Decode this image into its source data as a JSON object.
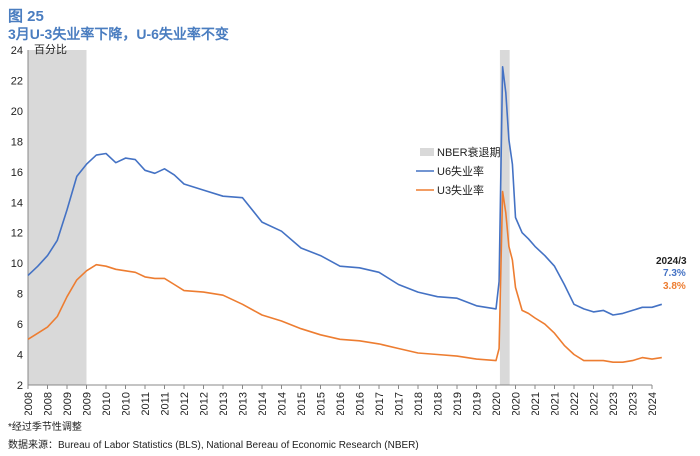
{
  "figure": {
    "number": "图 25",
    "title": "3月U-3失业率下降，U-6失业率不变",
    "footnote": "*经过季节性调整",
    "source": "数据来源：Bureau of Labor Statistics (BLS), National Bereau of Economic Research (NBER)"
  },
  "colors": {
    "u6": "#4472c4",
    "u3": "#ed7d31",
    "recession": "#d9d9d9",
    "axis": "#888888"
  },
  "chart_data": {
    "type": "line",
    "title": "3月U-3失业率下降，U-6失业率不变",
    "ylabel": "百分比",
    "xlim": [
      2008,
      2024
    ],
    "ylim": [
      2,
      24
    ],
    "yticks": [
      2,
      4,
      6,
      8,
      10,
      12,
      14,
      16,
      18,
      20,
      22,
      24
    ],
    "xticks": [
      "2008",
      "2008",
      "2009",
      "2009",
      "2010",
      "2010",
      "2011",
      "2011",
      "2012",
      "2012",
      "2013",
      "2013",
      "2014",
      "2014",
      "2015",
      "2015",
      "2016",
      "2016",
      "2017",
      "2017",
      "2018",
      "2018",
      "2019",
      "2019",
      "2020",
      "2020",
      "2021",
      "2021",
      "2022",
      "2022",
      "2023",
      "2023",
      "2024"
    ],
    "recessions": [
      {
        "name": "NBER衰退期",
        "start": 2008.0,
        "end": 2009.5
      },
      {
        "name": "NBER衰退期",
        "start": 2020.1,
        "end": 2020.35
      }
    ],
    "legend": [
      {
        "key": "recession",
        "label": "NBER衰退期"
      },
      {
        "key": "u6",
        "label": "U6失业率"
      },
      {
        "key": "u3",
        "label": "U3失业率"
      }
    ],
    "series": [
      {
        "name": "U6失业率",
        "x": [
          2008.0,
          2008.25,
          2008.5,
          2008.75,
          2009.0,
          2009.25,
          2009.5,
          2009.75,
          2010.0,
          2010.25,
          2010.5,
          2010.75,
          2011.0,
          2011.25,
          2011.5,
          2011.75,
          2012.0,
          2012.5,
          2013.0,
          2013.5,
          2014.0,
          2014.5,
          2015.0,
          2015.5,
          2016.0,
          2016.5,
          2017.0,
          2017.5,
          2018.0,
          2018.5,
          2019.0,
          2019.5,
          2020.0,
          2020.08,
          2020.17,
          2020.25,
          2020.33,
          2020.42,
          2020.5,
          2020.67,
          2020.83,
          2021.0,
          2021.25,
          2021.5,
          2021.75,
          2022.0,
          2022.25,
          2022.5,
          2022.75,
          2023.0,
          2023.25,
          2023.5,
          2023.75,
          2024.0,
          2024.25
        ],
        "values": [
          9.2,
          9.8,
          10.5,
          11.5,
          13.5,
          15.7,
          16.5,
          17.1,
          17.2,
          16.6,
          16.9,
          16.8,
          16.1,
          15.9,
          16.2,
          15.8,
          15.2,
          14.8,
          14.4,
          14.3,
          12.7,
          12.1,
          11.0,
          10.5,
          9.8,
          9.7,
          9.4,
          8.6,
          8.1,
          7.8,
          7.7,
          7.2,
          7.0,
          8.8,
          22.9,
          21.2,
          18.1,
          16.5,
          13.0,
          12.0,
          11.6,
          11.1,
          10.5,
          9.8,
          8.6,
          7.3,
          7.0,
          6.8,
          6.9,
          6.6,
          6.7,
          6.9,
          7.1,
          7.1,
          7.3
        ]
      },
      {
        "name": "U3失业率",
        "x": [
          2008.0,
          2008.25,
          2008.5,
          2008.75,
          2009.0,
          2009.25,
          2009.5,
          2009.75,
          2010.0,
          2010.25,
          2010.5,
          2010.75,
          2011.0,
          2011.25,
          2011.5,
          2011.75,
          2012.0,
          2012.5,
          2013.0,
          2013.5,
          2014.0,
          2014.5,
          2015.0,
          2015.5,
          2016.0,
          2016.5,
          2017.0,
          2017.5,
          2018.0,
          2018.5,
          2019.0,
          2019.5,
          2020.0,
          2020.08,
          2020.17,
          2020.25,
          2020.33,
          2020.42,
          2020.5,
          2020.67,
          2020.83,
          2021.0,
          2021.25,
          2021.5,
          2021.75,
          2022.0,
          2022.25,
          2022.5,
          2022.75,
          2023.0,
          2023.25,
          2023.5,
          2023.75,
          2024.0,
          2024.25
        ],
        "values": [
          5.0,
          5.4,
          5.8,
          6.5,
          7.8,
          8.9,
          9.5,
          9.9,
          9.8,
          9.6,
          9.5,
          9.4,
          9.1,
          9.0,
          9.0,
          8.6,
          8.2,
          8.1,
          7.9,
          7.3,
          6.6,
          6.2,
          5.7,
          5.3,
          5.0,
          4.9,
          4.7,
          4.4,
          4.1,
          4.0,
          3.9,
          3.7,
          3.6,
          4.4,
          14.7,
          13.3,
          11.1,
          10.2,
          8.4,
          6.9,
          6.7,
          6.4,
          6.0,
          5.4,
          4.6,
          4.0,
          3.6,
          3.6,
          3.6,
          3.5,
          3.5,
          3.6,
          3.8,
          3.7,
          3.8
        ]
      }
    ],
    "annotations": {
      "date": "2024/3",
      "u6_value": "7.3%",
      "u3_value": "3.8%"
    }
  }
}
